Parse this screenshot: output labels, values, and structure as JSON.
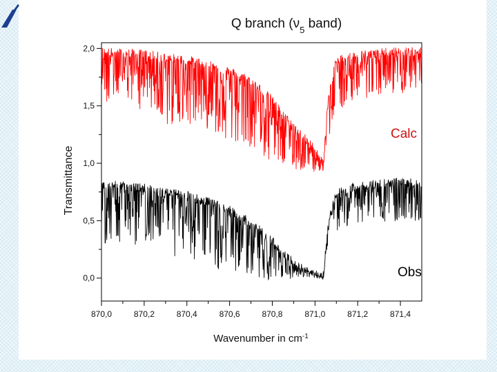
{
  "chart_data": {
    "type": "line",
    "title": "Q branch (ν₅ band)",
    "title_main": "Q branch (",
    "title_nu": "ν",
    "title_sub": "5",
    "title_end": " band)",
    "xlabel": "Wavenumber in cm",
    "xlabel_sup": "-1",
    "ylabel": "Transmittance",
    "xlim": [
      870.0,
      871.5
    ],
    "ylim": [
      -0.2,
      2.05
    ],
    "x_ticks": [
      870.0,
      870.2,
      870.4,
      870.6,
      870.8,
      871.0,
      871.2,
      871.4
    ],
    "x_tick_labels": [
      "870,0",
      "870,2",
      "870,4",
      "870,6",
      "870,8",
      "871,0",
      "871,2",
      "871,4"
    ],
    "y_ticks": [
      0.0,
      0.5,
      1.0,
      1.5,
      2.0
    ],
    "y_tick_labels": [
      "0,0",
      "0,5",
      "1,0",
      "1,5",
      "2,0"
    ],
    "grid": false,
    "series": [
      {
        "name": "Calc",
        "color": "#ff0000",
        "x": [
          870.0,
          870.1,
          870.2,
          870.3,
          870.4,
          870.5,
          870.6,
          870.7,
          870.8,
          870.85,
          870.9,
          870.95,
          871.0,
          871.04,
          871.06,
          871.1,
          871.2,
          871.3,
          871.4,
          871.5
        ],
        "baseline": [
          1.97,
          1.96,
          1.95,
          1.92,
          1.9,
          1.86,
          1.8,
          1.72,
          1.55,
          1.42,
          1.32,
          1.22,
          1.12,
          1.0,
          1.55,
          1.9,
          1.94,
          1.96,
          1.97,
          1.97
        ],
        "min": [
          1.5,
          1.55,
          1.45,
          1.32,
          1.35,
          1.3,
          1.2,
          1.1,
          1.0,
          0.95,
          0.95,
          0.93,
          0.93,
          0.93,
          1.2,
          1.45,
          1.55,
          1.6,
          1.6,
          1.6
        ]
      },
      {
        "name": "Obs",
        "color": "#000000",
        "x": [
          870.0,
          870.1,
          870.2,
          870.3,
          870.4,
          870.5,
          870.6,
          870.7,
          870.8,
          870.85,
          870.9,
          870.95,
          871.0,
          871.04,
          871.06,
          871.1,
          871.2,
          871.3,
          871.4,
          871.5
        ],
        "baseline": [
          0.82,
          0.8,
          0.78,
          0.74,
          0.72,
          0.66,
          0.6,
          0.48,
          0.32,
          0.22,
          0.14,
          0.08,
          0.04,
          0.02,
          0.45,
          0.75,
          0.8,
          0.82,
          0.84,
          0.82
        ],
        "min": [
          0.3,
          0.3,
          0.28,
          0.18,
          0.2,
          0.1,
          0.05,
          0.0,
          -0.02,
          -0.02,
          0.0,
          0.0,
          0.0,
          0.0,
          0.3,
          0.4,
          0.45,
          0.48,
          0.5,
          0.5
        ]
      }
    ],
    "annotations": [
      {
        "text": "Calc",
        "color": "#cc1111"
      },
      {
        "text": "Obs",
        "color": "#000000"
      }
    ]
  }
}
